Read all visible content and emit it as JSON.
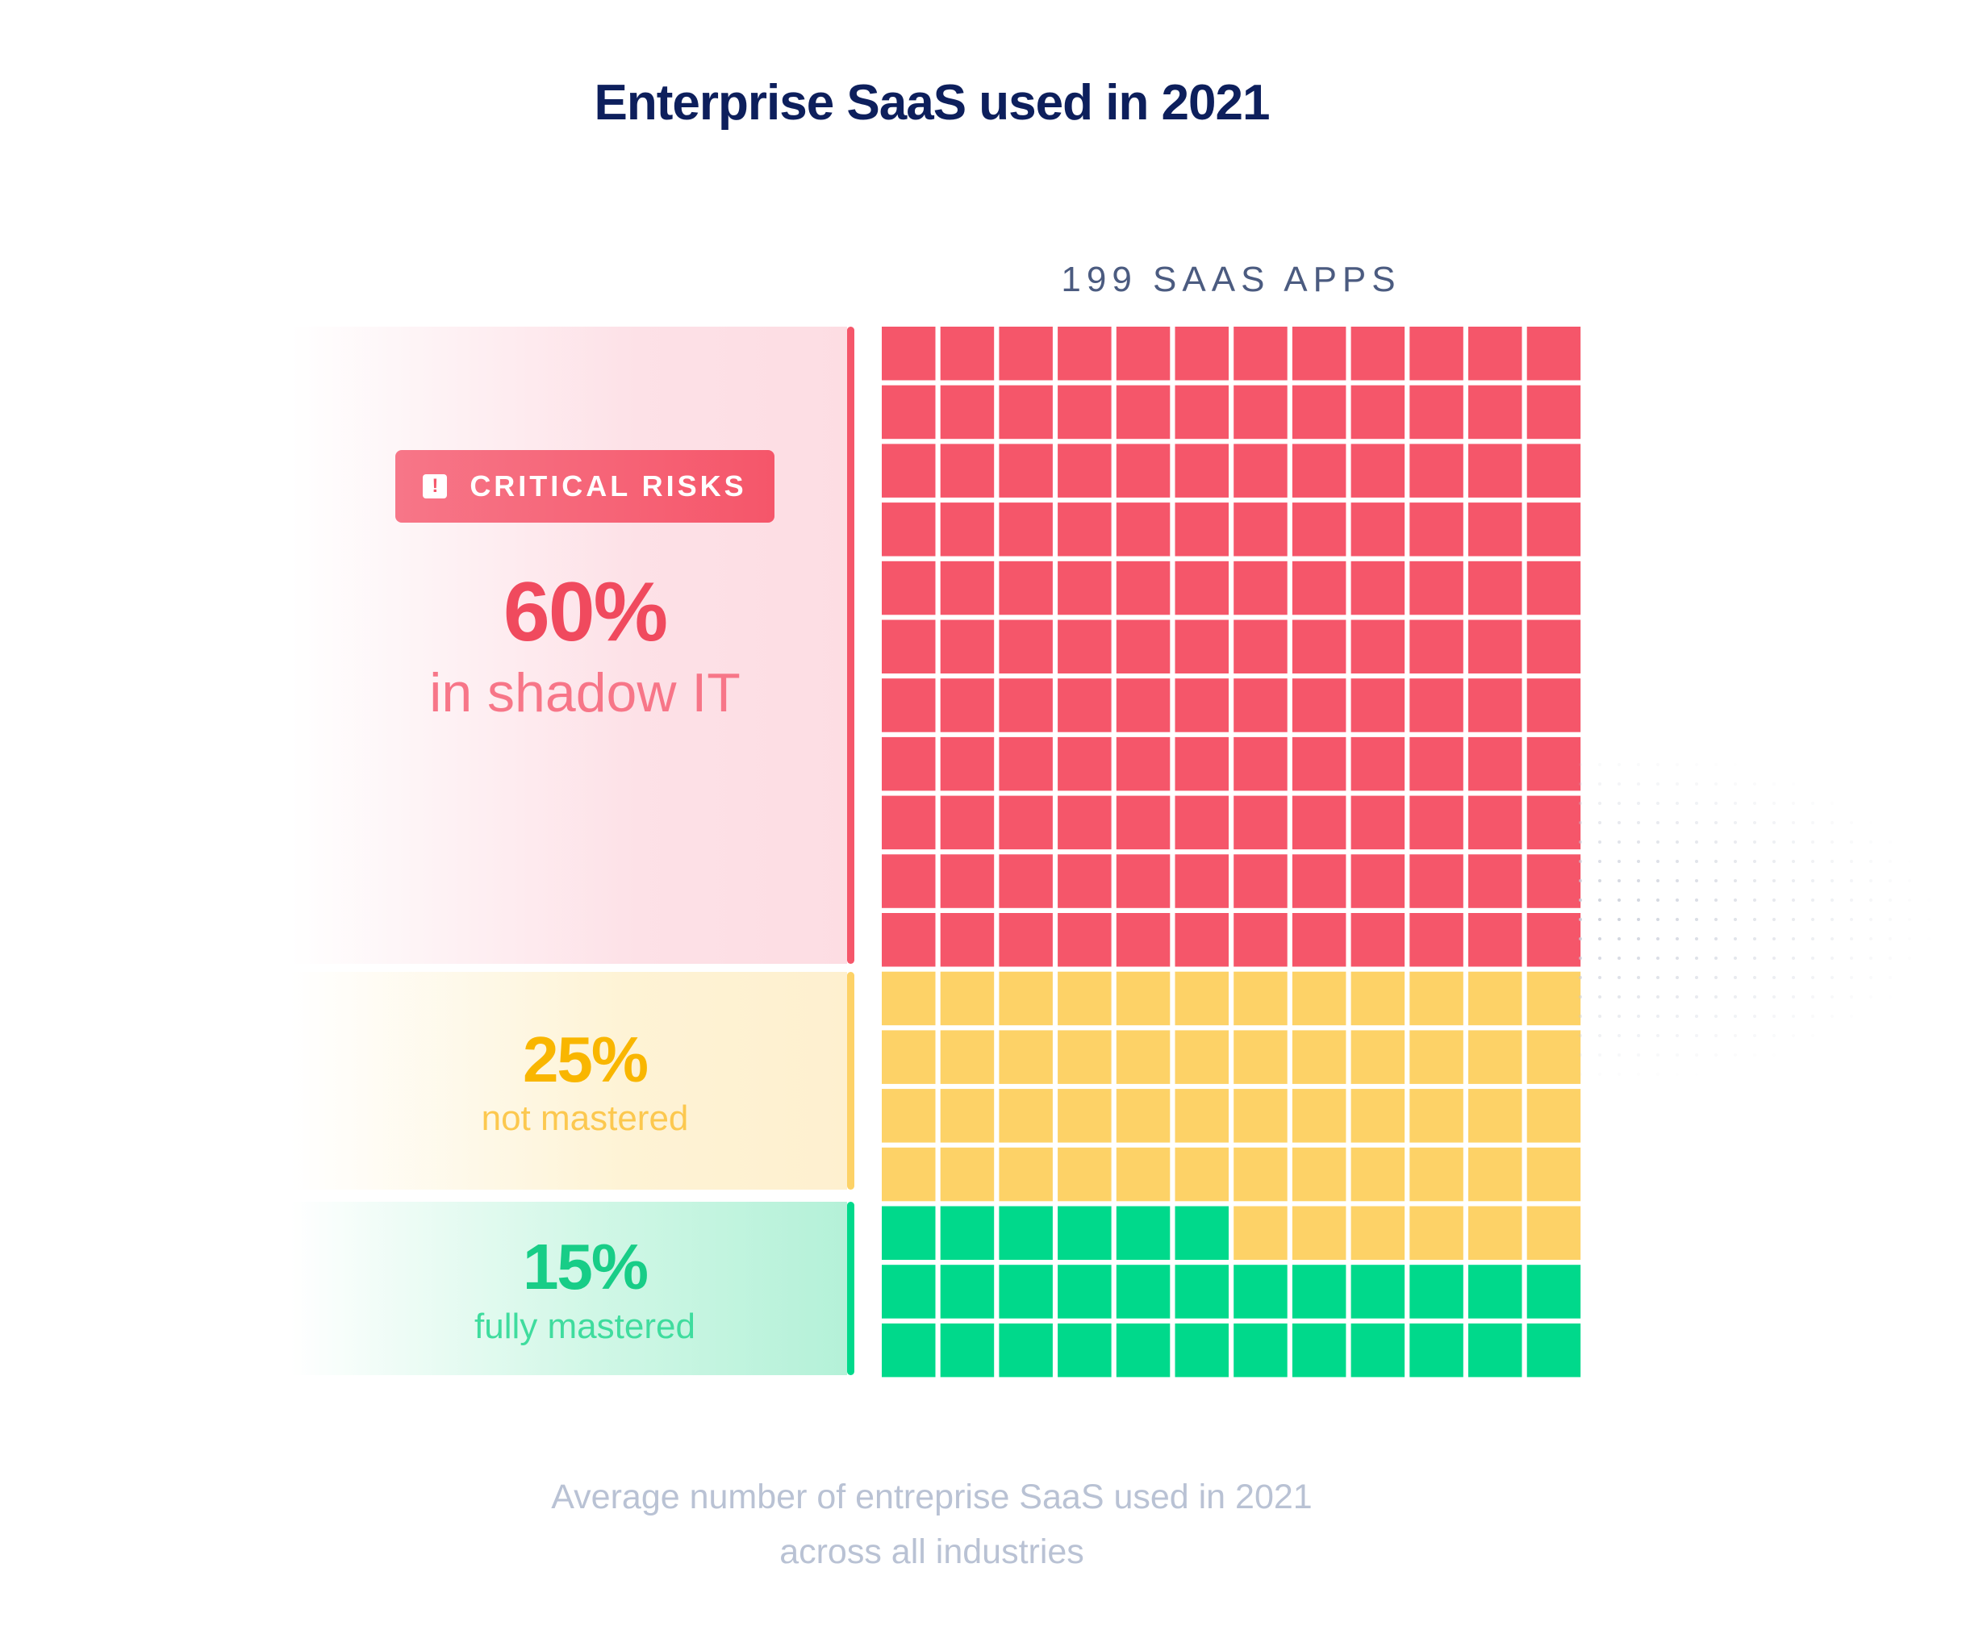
{
  "title": "Enterprise SaaS used in 2021",
  "total_label": "199 SAAS APPS",
  "badge": {
    "icon": "exclamation-icon",
    "glyph": "!",
    "label": "CRITICAL RISKS"
  },
  "chart_data": {
    "type": "waffle",
    "title": "Enterprise SaaS used in 2021",
    "total": 199,
    "total_label": "199 SAAS APPS",
    "columns": 12,
    "rows": 18,
    "segments": [
      {
        "percent": "60%",
        "label": "in shadow IT",
        "value": 60,
        "cells": 132,
        "color": "#f5566a"
      },
      {
        "percent": "25%",
        "label": "not mastered",
        "value": 25,
        "cells": 54,
        "color": "#fdd267"
      },
      {
        "percent": "15%",
        "label": "fully mastered",
        "value": 15,
        "cells": 30,
        "color": "#00d98b"
      }
    ]
  },
  "footnote": {
    "line1": "Average number of entreprise SaaS used in 2021",
    "line2": "across all industries"
  }
}
